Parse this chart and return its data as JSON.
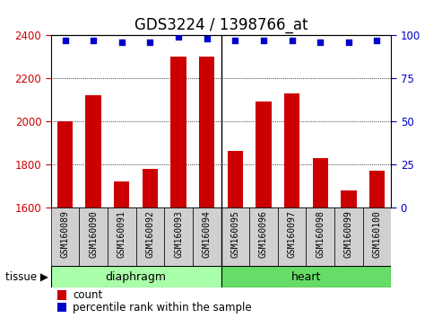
{
  "title": "GDS3224 / 1398766_at",
  "samples": [
    "GSM160089",
    "GSM160090",
    "GSM160091",
    "GSM160092",
    "GSM160093",
    "GSM160094",
    "GSM160095",
    "GSM160096",
    "GSM160097",
    "GSM160098",
    "GSM160099",
    "GSM160100"
  ],
  "counts": [
    2000,
    2120,
    1720,
    1780,
    2300,
    2300,
    1860,
    2090,
    2130,
    1830,
    1680,
    1770
  ],
  "percentiles": [
    97,
    97,
    96,
    96,
    99,
    98,
    97,
    97,
    97,
    96,
    96,
    97
  ],
  "groups": [
    {
      "label": "diaphragm",
      "start": 0,
      "end": 6
    },
    {
      "label": "heart",
      "start": 6,
      "end": 12
    }
  ],
  "group_colors": [
    "#AAFFAA",
    "#66DD66"
  ],
  "ylim_left": [
    1600,
    2400
  ],
  "ylim_right": [
    0,
    100
  ],
  "yticks_left": [
    1600,
    1800,
    2000,
    2200,
    2400
  ],
  "yticks_right": [
    0,
    25,
    50,
    75,
    100
  ],
  "bar_color": "#CC0000",
  "dot_color": "#0000CC",
  "left_tick_color": "#CC0000",
  "right_tick_color": "#0000CC",
  "title_fontsize": 12,
  "tick_fontsize": 8.5,
  "sample_fontsize": 7,
  "tissue_label": "tissue",
  "legend_count": "count",
  "legend_percentile": "percentile rank within the sample",
  "plot_bg": "#FFFFFF",
  "label_bg": "#D0D0D0",
  "n_samples": 12
}
